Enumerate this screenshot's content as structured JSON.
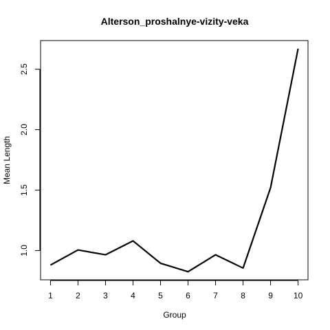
{
  "chart_data": {
    "type": "line",
    "title": "Alterson_proshalnye-vizity-veka",
    "xlabel": "Group",
    "ylabel": "Mean Length",
    "x": [
      1,
      2,
      3,
      4,
      5,
      6,
      7,
      8,
      9,
      10
    ],
    "series": [
      {
        "values": [
          0.88,
          1.005,
          0.965,
          1.08,
          0.895,
          0.825,
          0.965,
          0.855,
          1.52,
          2.67
        ]
      }
    ],
    "x_ticks": [
      1,
      2,
      3,
      4,
      5,
      6,
      7,
      8,
      9,
      10
    ],
    "y_ticks": [
      1.0,
      1.5,
      2.0,
      2.5
    ],
    "x_tick_labels": [
      "1",
      "2",
      "3",
      "4",
      "5",
      "6",
      "7",
      "8",
      "9",
      "10"
    ],
    "y_tick_labels": [
      "1.0",
      "1.5",
      "2.0",
      "2.5"
    ],
    "xlim": [
      0.64,
      10.36
    ],
    "ylim": [
      0.758,
      2.737
    ],
    "grid": false,
    "line_color": "#000000"
  }
}
